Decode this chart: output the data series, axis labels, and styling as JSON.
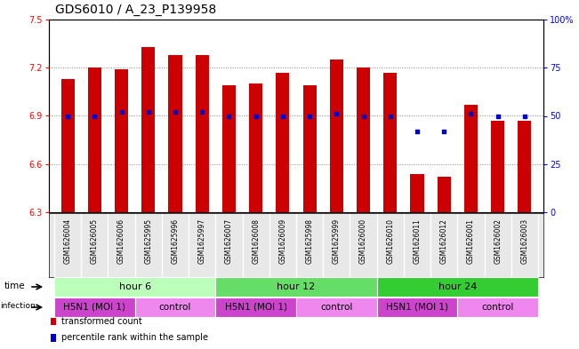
{
  "title": "GDS6010 / A_23_P139958",
  "samples": [
    "GSM1626004",
    "GSM1626005",
    "GSM1626006",
    "GSM1625995",
    "GSM1625996",
    "GSM1625997",
    "GSM1626007",
    "GSM1626008",
    "GSM1626009",
    "GSM1625998",
    "GSM1625999",
    "GSM1626000",
    "GSM1626010",
    "GSM1626011",
    "GSM1626012",
    "GSM1626001",
    "GSM1626002",
    "GSM1626003"
  ],
  "bar_values": [
    7.13,
    7.2,
    7.19,
    7.33,
    7.28,
    7.28,
    7.09,
    7.1,
    7.17,
    7.09,
    7.25,
    7.2,
    7.17,
    6.54,
    6.52,
    6.97,
    6.87,
    6.87
  ],
  "percentile_values": [
    50,
    50,
    52,
    52,
    52,
    52,
    50,
    50,
    50,
    50,
    51,
    50,
    50,
    42,
    42,
    51,
    50,
    50
  ],
  "ylim": [
    6.3,
    7.5
  ],
  "yticks": [
    6.3,
    6.6,
    6.9,
    7.2,
    7.5
  ],
  "y_right_ticks": [
    0,
    25,
    50,
    75,
    100
  ],
  "y_right_labels": [
    "0",
    "25",
    "50",
    "75",
    "100%"
  ],
  "bar_color": "#cc0000",
  "dot_color": "#0000cc",
  "bar_width": 0.5,
  "time_groups": [
    {
      "label": "hour 6",
      "start": 0,
      "end": 5,
      "color": "#bbffbb"
    },
    {
      "label": "hour 12",
      "start": 6,
      "end": 11,
      "color": "#66dd66"
    },
    {
      "label": "hour 24",
      "start": 12,
      "end": 17,
      "color": "#33cc33"
    }
  ],
  "infection_groups": [
    {
      "label": "H5N1 (MOI 1)",
      "start": 0,
      "end": 2,
      "color": "#cc44cc"
    },
    {
      "label": "control",
      "start": 3,
      "end": 5,
      "color": "#ee88ee"
    },
    {
      "label": "H5N1 (MOI 1)",
      "start": 6,
      "end": 8,
      "color": "#cc44cc"
    },
    {
      "label": "control",
      "start": 9,
      "end": 11,
      "color": "#ee88ee"
    },
    {
      "label": "H5N1 (MOI 1)",
      "start": 12,
      "end": 14,
      "color": "#cc44cc"
    },
    {
      "label": "control",
      "start": 15,
      "end": 17,
      "color": "#ee88ee"
    }
  ],
  "legend_items": [
    {
      "label": "transformed count",
      "color": "#cc0000"
    },
    {
      "label": "percentile rank within the sample",
      "color": "#0000cc"
    }
  ],
  "grid_color": "#888888",
  "bg_color": "#ffffff",
  "title_fontsize": 10,
  "tick_fontsize": 7,
  "sample_fontsize": 5.5,
  "row_fontsize": 8,
  "legend_fontsize": 7
}
